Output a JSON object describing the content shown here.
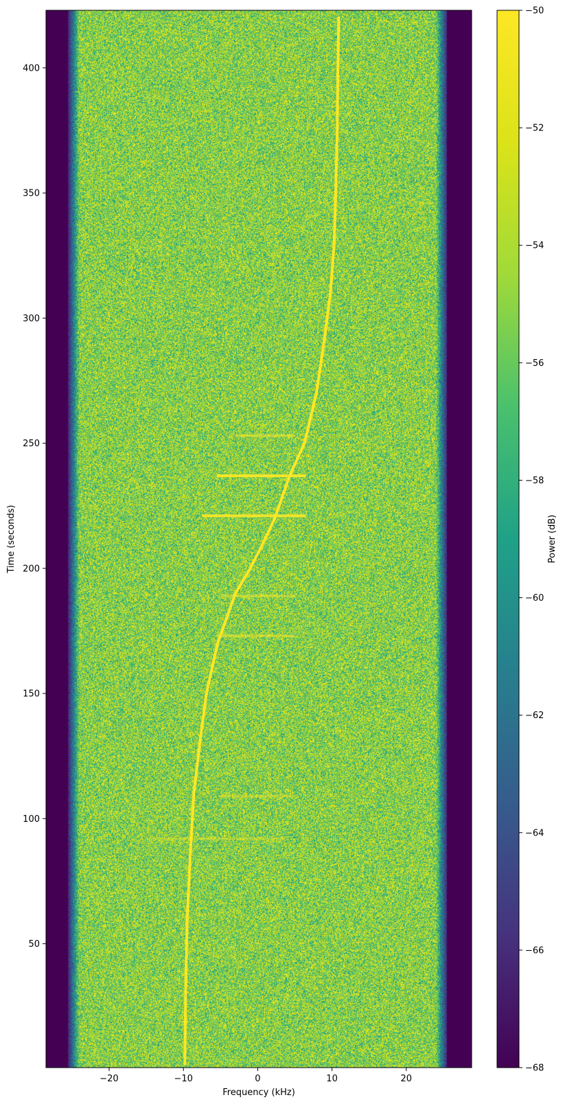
{
  "chart_data": {
    "type": "heatmap",
    "title": "",
    "xlabel": "Frequency (kHz)",
    "ylabel": "Time (seconds)",
    "xlim": [
      -28.5,
      28.8
    ],
    "ylim": [
      0.5,
      423
    ],
    "x_ticks": [
      -20,
      -10,
      0,
      10,
      20
    ],
    "x_tick_labels": [
      "−20",
      "−10",
      "0",
      "10",
      "20"
    ],
    "y_ticks": [
      50,
      100,
      150,
      200,
      250,
      300,
      350,
      400
    ],
    "y_tick_labels": [
      "50",
      "100",
      "150",
      "200",
      "250",
      "300",
      "350",
      "400"
    ],
    "colorbar": {
      "label": "Power (dB)",
      "range": [
        -68,
        -50
      ],
      "colormap": "viridis",
      "ticks": [
        -50,
        -52,
        -54,
        -56,
        -58,
        -60,
        -62,
        -64,
        -66,
        -68
      ],
      "tick_labels": [
        "−50",
        "−52",
        "−54",
        "−56",
        "−58",
        "−60",
        "−62",
        "−64",
        "−66",
        "−68"
      ]
    },
    "noise_floor": {
      "passband_khz": [
        -24,
        24
      ],
      "rolloff_edges_khz": [
        -25.5,
        25.5
      ],
      "outside_level_db": -68
    },
    "signal_trace": {
      "description_points": [
        {
          "t": 2,
          "f": -9.8
        },
        {
          "t": 30,
          "f": -9.7
        },
        {
          "t": 60,
          "f": -9.5
        },
        {
          "t": 90,
          "f": -9.0
        },
        {
          "t": 110,
          "f": -8.6
        },
        {
          "t": 130,
          "f": -7.8
        },
        {
          "t": 150,
          "f": -6.9
        },
        {
          "t": 170,
          "f": -5.4
        },
        {
          "t": 190,
          "f": -3.0
        },
        {
          "t": 200,
          "f": -1.0
        },
        {
          "t": 210,
          "f": 0.7
        },
        {
          "t": 220,
          "f": 2.3
        },
        {
          "t": 237,
          "f": 4.3
        },
        {
          "t": 250,
          "f": 6.3
        },
        {
          "t": 270,
          "f": 7.9
        },
        {
          "t": 290,
          "f": 8.9
        },
        {
          "t": 310,
          "f": 9.8
        },
        {
          "t": 330,
          "f": 10.3
        },
        {
          "t": 350,
          "f": 10.5
        },
        {
          "t": 375,
          "f": 10.7
        },
        {
          "t": 400,
          "f": 10.8
        },
        {
          "t": 420,
          "f": 10.9
        }
      ]
    },
    "horizontal_bursts": [
      {
        "t": 253,
        "f_from": -3.0,
        "f_to": 5.0,
        "strength": 0.55
      },
      {
        "t": 237,
        "f_from": -5.5,
        "f_to": 6.5,
        "strength": 0.95
      },
      {
        "t": 221,
        "f_from": -7.5,
        "f_to": 6.5,
        "strength": 0.9
      },
      {
        "t": 189,
        "f_from": -5.0,
        "f_to": 5.0,
        "strength": 0.5
      },
      {
        "t": 173,
        "f_from": -5.5,
        "f_to": 5.0,
        "strength": 0.55
      },
      {
        "t": 109,
        "f_from": -5.0,
        "f_to": 5.0,
        "strength": 0.4
      },
      {
        "t": 92,
        "f_from": -15.0,
        "f_to": 4.0,
        "strength": 0.35
      }
    ]
  }
}
